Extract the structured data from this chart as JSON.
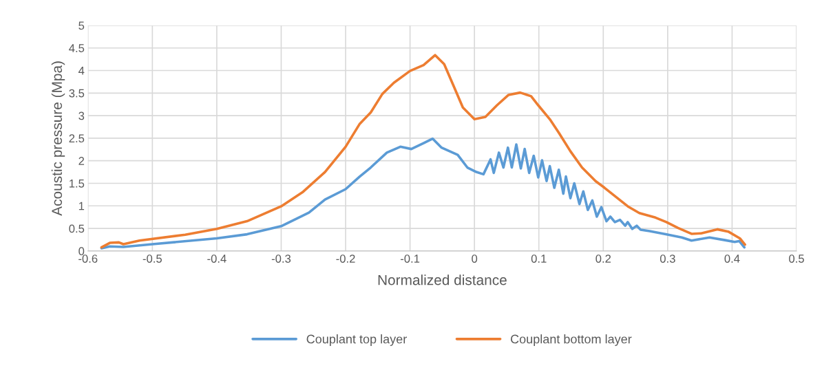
{
  "chart_data": {
    "type": "line",
    "xlabel": "Normalized distance",
    "ylabel": "Acoustic pressure (Mpa)",
    "xlim": [
      -0.6,
      0.5
    ],
    "xticks": [
      -0.6,
      -0.5,
      -0.4,
      -0.3,
      -0.2,
      -0.1,
      0,
      0.1,
      0.2,
      0.3,
      0.4,
      0.5
    ],
    "ylim": [
      0,
      5
    ],
    "yticks": [
      0,
      0.5,
      1,
      1.5,
      2,
      2.5,
      3,
      3.5,
      4,
      4.5,
      5
    ],
    "grid": true,
    "legend": "bottom",
    "marker": "none",
    "line_style": "solid",
    "series": [
      {
        "name": "Couplant top layer",
        "color": "#5b9bd5",
        "x": [
          -0.579,
          -0.566,
          -0.545,
          -0.5,
          -0.4,
          -0.353,
          -0.3,
          -0.257,
          -0.232,
          -0.2,
          -0.178,
          -0.161,
          -0.136,
          -0.115,
          -0.098,
          -0.079,
          -0.065,
          -0.051,
          -0.026,
          -0.011,
          0.003,
          0.014,
          0.025,
          0.03,
          0.038,
          0.045,
          0.052,
          0.058,
          0.065,
          0.072,
          0.078,
          0.085,
          0.092,
          0.099,
          0.105,
          0.112,
          0.117,
          0.124,
          0.131,
          0.138,
          0.142,
          0.149,
          0.155,
          0.163,
          0.169,
          0.176,
          0.183,
          0.19,
          0.197,
          0.205,
          0.211,
          0.218,
          0.226,
          0.234,
          0.238,
          0.245,
          0.252,
          0.258,
          0.272,
          0.297,
          0.322,
          0.337,
          0.365,
          0.389,
          0.404,
          0.411,
          0.419
        ],
        "values": [
          0.06,
          0.1,
          0.09,
          0.15,
          0.28,
          0.37,
          0.55,
          0.85,
          1.14,
          1.37,
          1.65,
          1.85,
          2.18,
          2.31,
          2.26,
          2.39,
          2.49,
          2.29,
          2.13,
          1.85,
          1.75,
          1.7,
          2.03,
          1.73,
          2.18,
          1.85,
          2.29,
          1.85,
          2.36,
          1.83,
          2.26,
          1.73,
          2.11,
          1.63,
          2.01,
          1.55,
          1.88,
          1.4,
          1.8,
          1.27,
          1.65,
          1.17,
          1.5,
          1.04,
          1.32,
          0.91,
          1.12,
          0.76,
          0.97,
          0.66,
          0.76,
          0.64,
          0.69,
          0.56,
          0.64,
          0.49,
          0.56,
          0.47,
          0.44,
          0.37,
          0.3,
          0.23,
          0.3,
          0.24,
          0.2,
          0.22,
          0.08
        ]
      },
      {
        "name": "Couplant bottom layer",
        "color": "#ed7d31",
        "x": [
          -0.579,
          -0.566,
          -0.552,
          -0.545,
          -0.52,
          -0.449,
          -0.4,
          -0.353,
          -0.3,
          -0.267,
          -0.232,
          -0.2,
          -0.178,
          -0.161,
          -0.143,
          -0.125,
          -0.1,
          -0.079,
          -0.061,
          -0.047,
          -0.033,
          -0.018,
          0.0,
          0.017,
          0.035,
          0.053,
          0.071,
          0.088,
          0.099,
          0.117,
          0.131,
          0.149,
          0.167,
          0.188,
          0.202,
          0.238,
          0.256,
          0.281,
          0.298,
          0.316,
          0.337,
          0.352,
          0.377,
          0.394,
          0.412,
          0.42
        ],
        "values": [
          0.08,
          0.18,
          0.19,
          0.15,
          0.23,
          0.36,
          0.49,
          0.66,
          0.99,
          1.3,
          1.75,
          2.31,
          2.82,
          3.07,
          3.48,
          3.73,
          3.99,
          4.12,
          4.34,
          4.14,
          3.68,
          3.18,
          2.92,
          2.97,
          3.23,
          3.46,
          3.51,
          3.43,
          3.23,
          2.92,
          2.62,
          2.21,
          1.85,
          1.55,
          1.4,
          0.99,
          0.84,
          0.74,
          0.64,
          0.51,
          0.38,
          0.39,
          0.48,
          0.43,
          0.28,
          0.14
        ]
      }
    ]
  }
}
